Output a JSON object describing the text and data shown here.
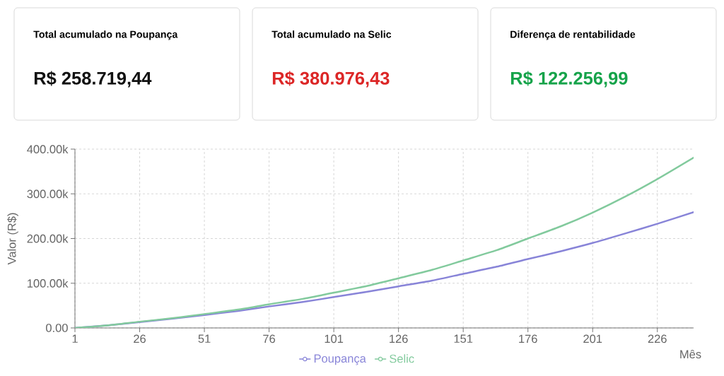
{
  "chart_data": [
    {
      "type": "other",
      "title": "Total acumulado na Poupança",
      "annotations": [
        "R$ 258.719,44"
      ],
      "color": "#111111"
    },
    {
      "type": "other",
      "title": "Total acumulado na Selic",
      "annotations": [
        "R$ 380.976,43"
      ],
      "color": "#dc2626"
    },
    {
      "type": "other",
      "title": "Diferença de rentabilidade",
      "annotations": [
        "R$ 122.256,99"
      ],
      "color": "#16a34a"
    },
    {
      "type": "line",
      "x": [
        1,
        14,
        26,
        39,
        51,
        64,
        76,
        89,
        101,
        114,
        126,
        139,
        151,
        164,
        176,
        189,
        201,
        214,
        226,
        240
      ],
      "xlim": [
        1,
        240
      ],
      "xticks": [
        1,
        26,
        51,
        76,
        101,
        126,
        151,
        176,
        201,
        226
      ],
      "ylim": [
        0,
        400000
      ],
      "yticks": [
        {
          "value": 0,
          "label": "0.00"
        },
        {
          "value": 100000,
          "label": "100.00k"
        },
        {
          "value": 200000,
          "label": "200.00k"
        },
        {
          "value": 300000,
          "label": "300.00k"
        },
        {
          "value": 400000,
          "label": "400.00k"
        }
      ],
      "xlabel": "Mês",
      "ylabel": "Valor (R$)",
      "series": [
        {
          "name": "Poupança",
          "color": "#8884d8",
          "values": [
            0,
            6000,
            13000,
            21000,
            29000,
            38000,
            48000,
            58000,
            69000,
            81000,
            93000,
            106000,
            121000,
            137000,
            154000,
            172000,
            190000,
            212000,
            233000,
            259000
          ]
        },
        {
          "name": "Selic",
          "color": "#82ca9d",
          "values": [
            0,
            6000,
            14000,
            22000,
            31000,
            41000,
            53000,
            65000,
            79000,
            94000,
            111000,
            130000,
            151000,
            174000,
            200000,
            228000,
            258000,
            295000,
            333000,
            381000
          ]
        }
      ],
      "grid": true,
      "legend": "bottom"
    }
  ]
}
